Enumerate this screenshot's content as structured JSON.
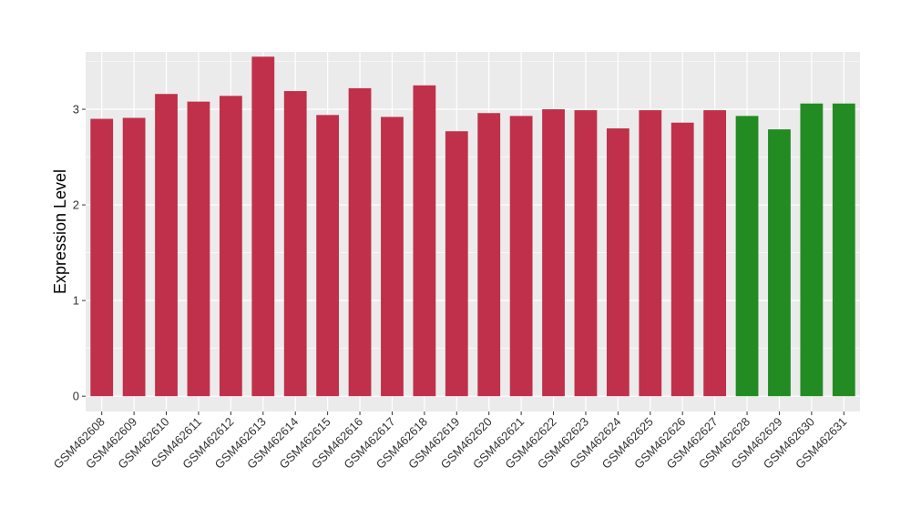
{
  "chart_data": {
    "type": "bar",
    "title": "",
    "xlabel": "",
    "ylabel": "Expression Level",
    "ylim": [
      -0.16,
      3.6
    ],
    "yticks": [
      0,
      1,
      2,
      3
    ],
    "grid": true,
    "legend": "none",
    "colors": {
      "red": "#c0304a",
      "green": "#228b22",
      "panel": "#ebebeb",
      "grid": "#ffffff"
    },
    "categories": [
      "GSM462608",
      "GSM462609",
      "GSM462610",
      "GSM462611",
      "GSM462612",
      "GSM462613",
      "GSM462614",
      "GSM462615",
      "GSM462616",
      "GSM462617",
      "GSM462618",
      "GSM462619",
      "GSM462620",
      "GSM462621",
      "GSM462622",
      "GSM462623",
      "GSM462624",
      "GSM462625",
      "GSM462626",
      "GSM462627",
      "GSM462628",
      "GSM462629",
      "GSM462630",
      "GSM462631"
    ],
    "values": [
      2.9,
      2.91,
      3.16,
      3.08,
      3.14,
      3.55,
      3.19,
      2.94,
      3.22,
      2.92,
      3.25,
      2.77,
      2.96,
      2.93,
      3.0,
      2.99,
      2.8,
      2.99,
      2.86,
      2.99,
      2.93,
      2.79,
      3.06,
      3.06
    ],
    "bar_colors": [
      "red",
      "red",
      "red",
      "red",
      "red",
      "red",
      "red",
      "red",
      "red",
      "red",
      "red",
      "red",
      "red",
      "red",
      "red",
      "red",
      "red",
      "red",
      "red",
      "red",
      "green",
      "green",
      "green",
      "green"
    ]
  }
}
